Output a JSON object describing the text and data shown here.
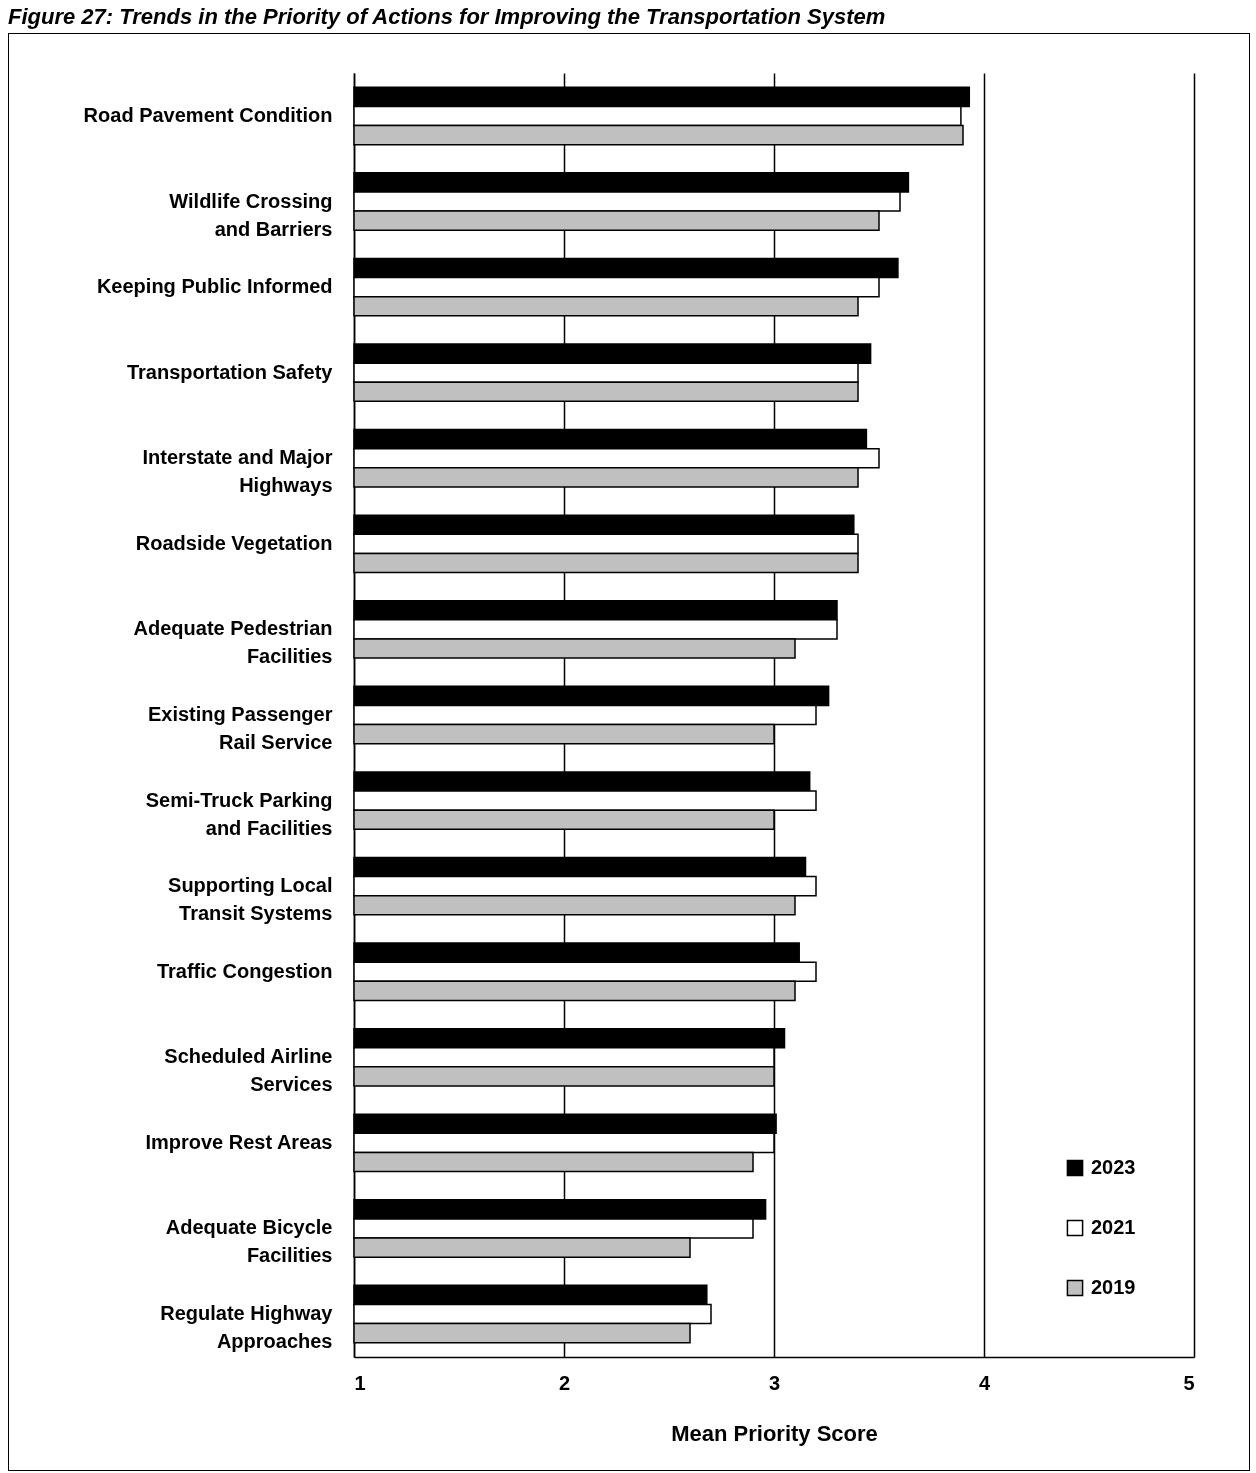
{
  "chart_data": {
    "type": "bar",
    "orientation": "horizontal",
    "title": "Figure 27: Trends in the Priority of Actions for Improving the Transportation System",
    "xlabel": "Mean Priority Score",
    "categories": [
      "Road Pavement Condition",
      "Wildlife Crossing\nand Barriers",
      "Keeping Public Informed",
      "Transportation Safety",
      "Interstate and Major\nHighways",
      "Roadside Vegetation",
      "Adequate Pedestrian\nFacilities",
      "Existing Passenger\nRail Service",
      "Semi-Truck Parking\nand Facilities",
      "Supporting Local\nTransit Systems",
      "Traffic Congestion",
      "Scheduled Airline\nServices",
      "Improve Rest Areas",
      "Adequate Bicycle\nFacilities",
      "Regulate Highway\nApproaches"
    ],
    "series": [
      {
        "name": "2023",
        "color": "#000000",
        "values": [
          3.93,
          3.64,
          3.59,
          3.46,
          3.44,
          3.38,
          3.3,
          3.26,
          3.17,
          3.15,
          3.12,
          3.05,
          3.01,
          2.96,
          2.68
        ]
      },
      {
        "name": "2021",
        "color": "#ffffff",
        "values": [
          3.89,
          3.6,
          3.5,
          3.4,
          3.5,
          3.4,
          3.3,
          3.2,
          3.2,
          3.2,
          3.2,
          3.0,
          3.0,
          2.9,
          2.7
        ]
      },
      {
        "name": "2019",
        "color": "#c0c0c0",
        "values": [
          3.9,
          3.5,
          3.4,
          3.4,
          3.4,
          3.4,
          3.1,
          3.0,
          3.0,
          3.1,
          3.1,
          3.0,
          2.9,
          2.6,
          2.6
        ]
      }
    ],
    "xlim": [
      1,
      5
    ],
    "xticks": [
      1,
      2,
      3,
      4,
      5
    ],
    "grid": "x",
    "legend": "bottom right"
  }
}
